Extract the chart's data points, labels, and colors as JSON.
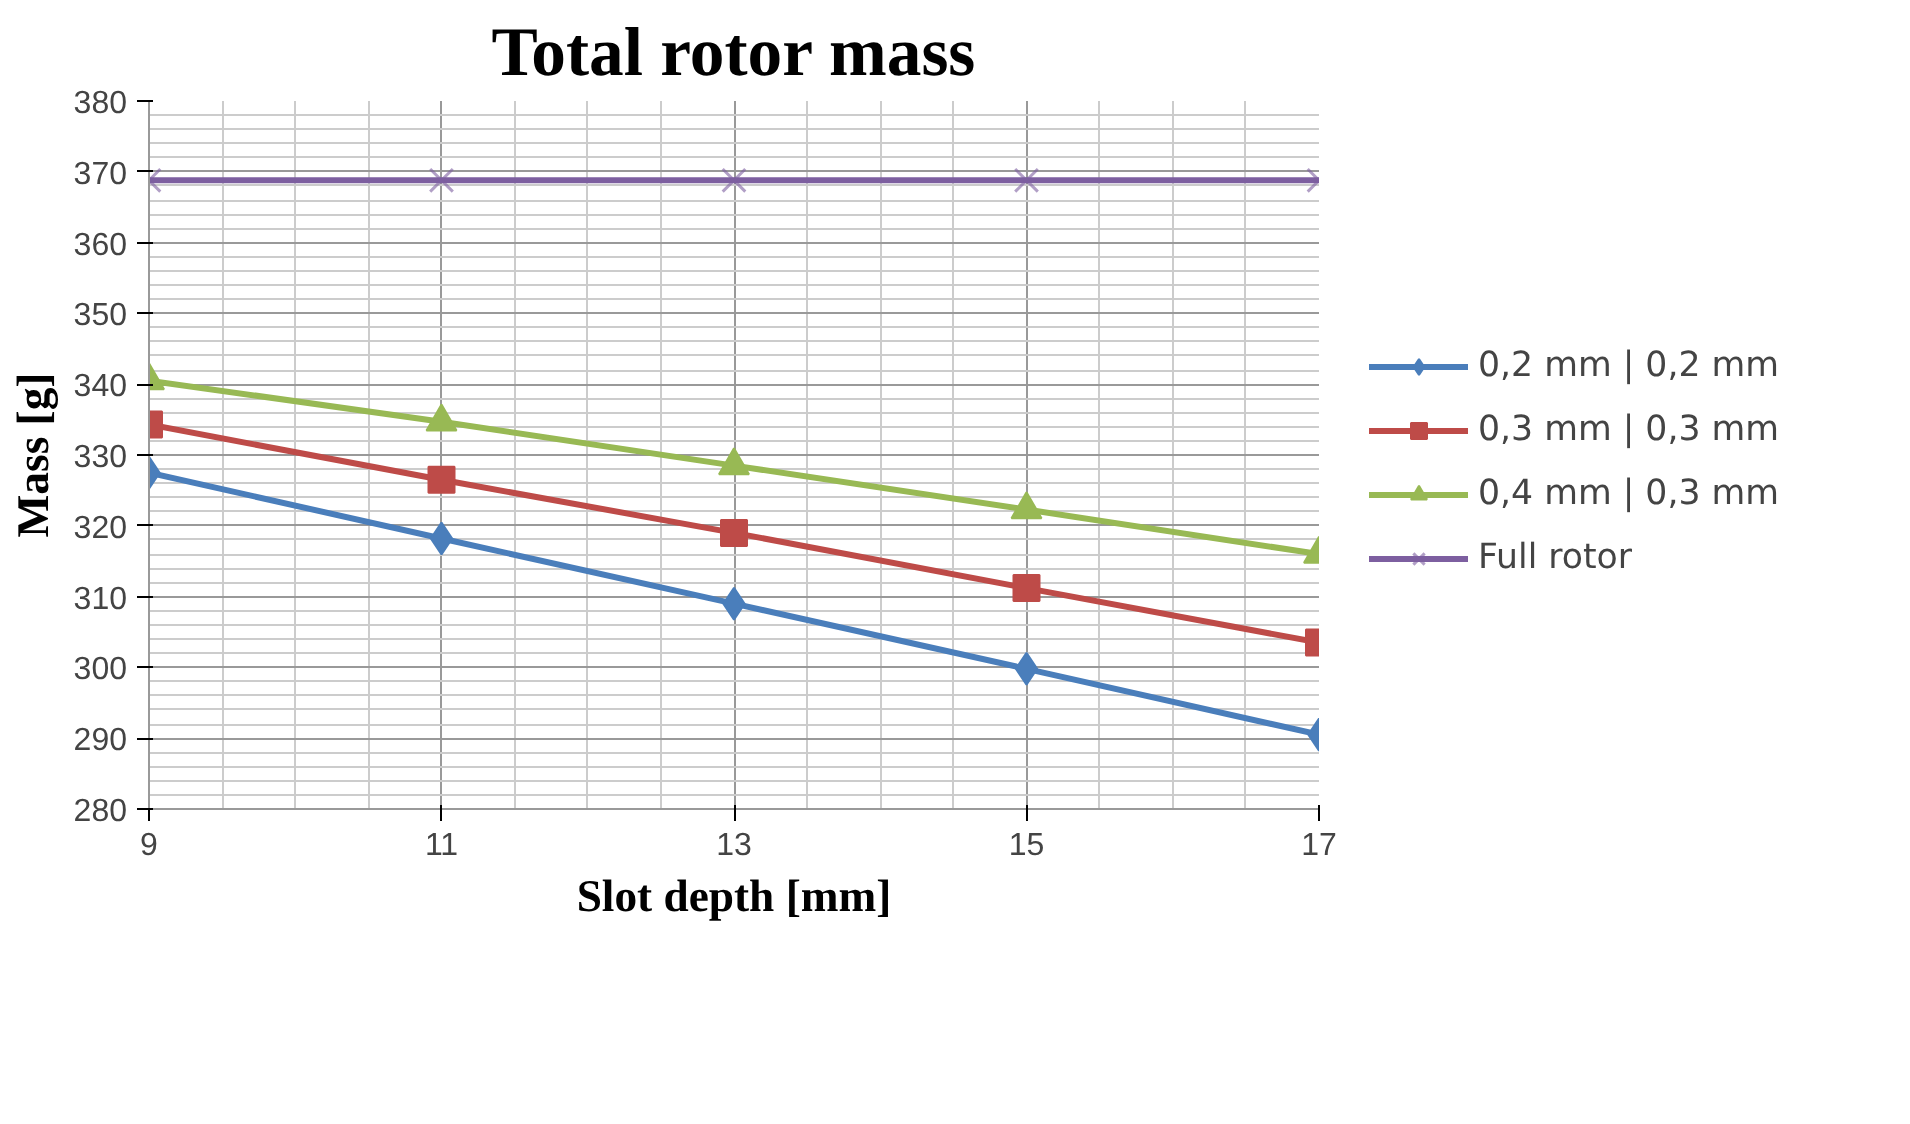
{
  "chart_data": {
    "type": "line",
    "title": "Total rotor mass",
    "xlabel": "Slot depth [mm]",
    "ylabel": "Mass [g]",
    "x": [
      9,
      11,
      13,
      15,
      17
    ],
    "xlim": [
      9,
      17
    ],
    "xticks": [
      9,
      11,
      13,
      15,
      17
    ],
    "ylim": [
      280,
      380
    ],
    "yticks": [
      280,
      290,
      300,
      310,
      320,
      330,
      340,
      350,
      360,
      370,
      380
    ],
    "grid": true,
    "legend": "right",
    "series": [
      {
        "name": "0,2 mm | 0,2 mm",
        "color": "#4a7ebb",
        "marker": "diamond",
        "values": [
          327.5,
          318.2,
          309,
          299.8,
          290.5
        ]
      },
      {
        "name": "0,3 mm | 0,3 mm",
        "color": "#be4b48",
        "marker": "square",
        "values": [
          334.3,
          326.5,
          319,
          311.2,
          303.5
        ]
      },
      {
        "name": "0,4 mm | 0,3 mm",
        "color": "#98b954",
        "marker": "triangle",
        "values": [
          340.5,
          334.7,
          328.5,
          322.3,
          316
        ]
      },
      {
        "name": "Full rotor",
        "color": "#7d5fa0",
        "marker": "cross",
        "values": [
          368.8,
          368.8,
          368.8,
          368.8,
          368.8
        ]
      }
    ]
  }
}
